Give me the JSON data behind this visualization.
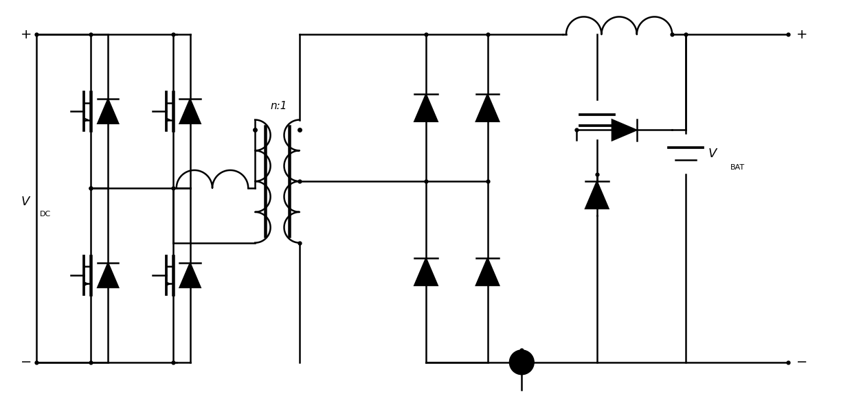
{
  "background": "#ffffff",
  "line_color": "#000000",
  "line_width": 1.8,
  "fig_width": 12.4,
  "fig_height": 5.74
}
